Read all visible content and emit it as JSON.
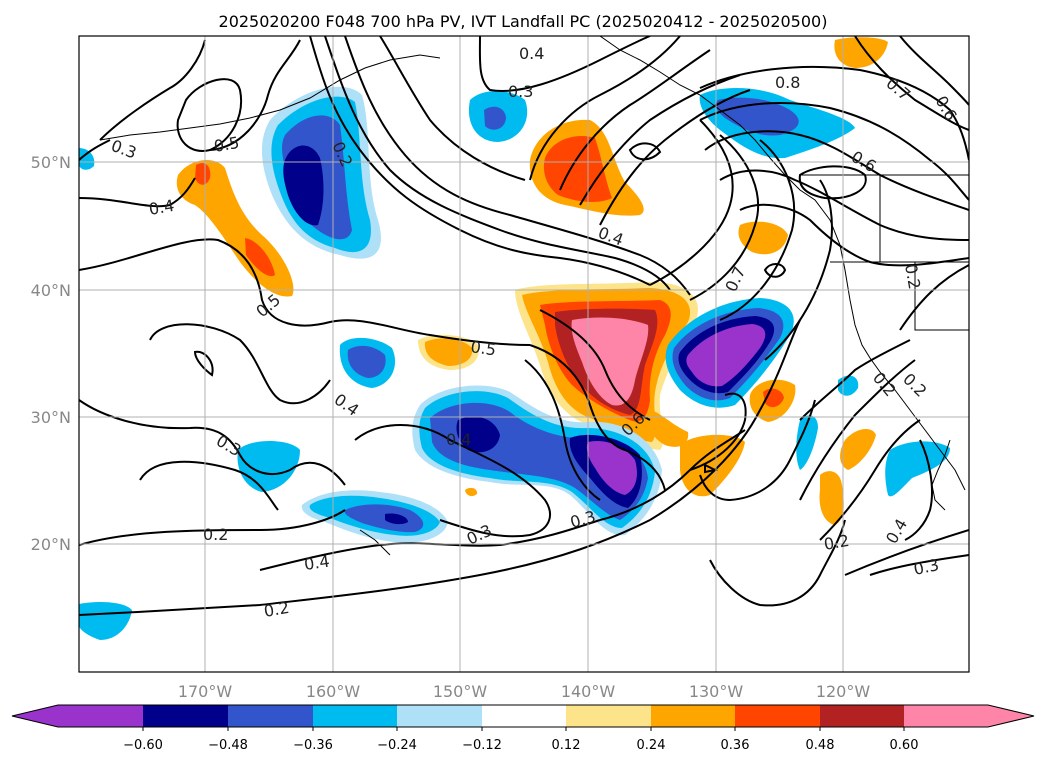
{
  "title": "2025020200 F048 700 hPa PV, IVT Landfall PC (2025020412 - 2025020500)",
  "map": {
    "lon_labels": [
      "170°W",
      "160°W",
      "150°W",
      "140°W",
      "130°W",
      "120°W"
    ],
    "lat_labels": [
      "50°N",
      "40°N",
      "30°N",
      "20°N"
    ],
    "gridlines": true,
    "contour_color": "#000000"
  },
  "colorbar": {
    "ticks": [
      "−0.60",
      "−0.48",
      "−0.36",
      "−0.24",
      "−0.12",
      "0.12",
      "0.24",
      "0.36",
      "0.48",
      "0.60"
    ],
    "colors": [
      "#9933cc",
      "#00008b",
      "#3355cc",
      "#00bbf0",
      "#aee0f8",
      "#ffffff",
      "#fde38a",
      "#ffa500",
      "#ff4500",
      "#b22222",
      "#ff85a8"
    ],
    "extend": "both"
  },
  "contour_labels": [
    "0.4",
    "0.3",
    "0.8",
    "0.7",
    "0.6",
    "0.3",
    "0.5",
    "0.2",
    "0.6",
    "0.4",
    "0.4",
    "0.2",
    "0.7",
    "0.5",
    "0.2",
    "0.5",
    "0.4",
    "0.2",
    "0.3",
    "0.4",
    "0.6",
    "0.3",
    "0.3",
    "0.2",
    "0.4",
    "0.4",
    "0.2",
    "0.3",
    "0.2"
  ]
}
